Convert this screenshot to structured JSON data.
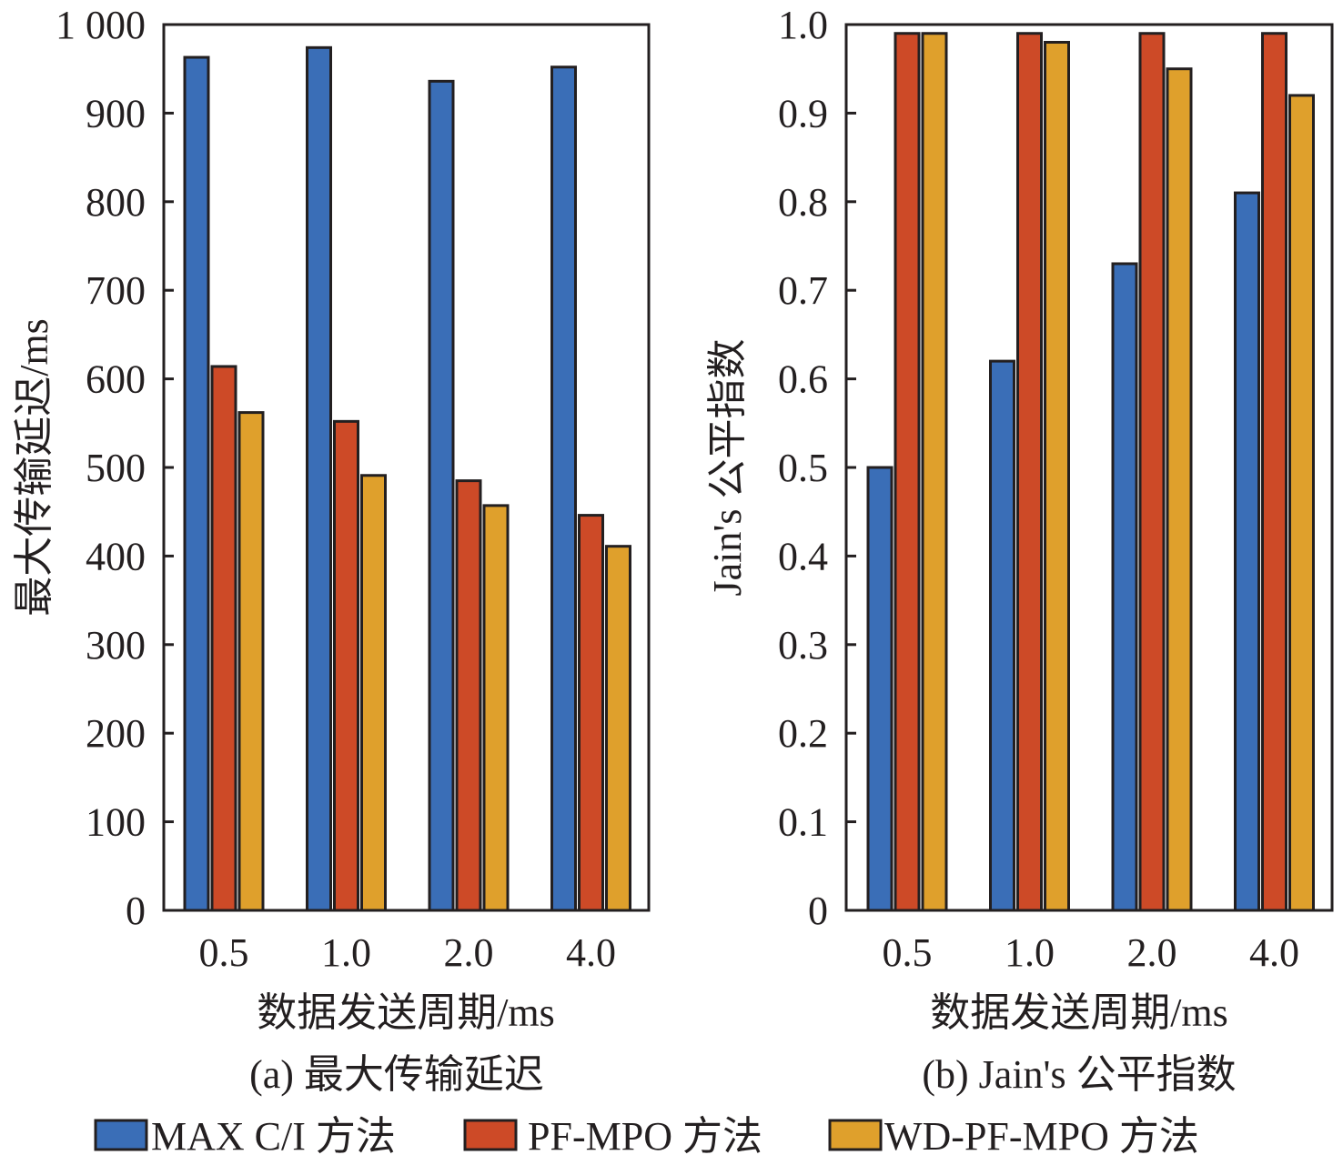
{
  "chart_data": [
    {
      "type": "bar",
      "title": "(a) 最大传输延迟",
      "xlabel": "数据发送周期/ms",
      "ylabel": "最大传输延迟/ms",
      "categories": [
        "0.5",
        "1.0",
        "2.0",
        "4.0"
      ],
      "ylim": [
        0,
        1000
      ],
      "yticks": [
        0,
        100,
        200,
        300,
        400,
        500,
        600,
        700,
        800,
        900,
        1000
      ],
      "ytick_labels": [
        "0",
        "100",
        "200",
        "300",
        "400",
        "500",
        "600",
        "700",
        "800",
        "900",
        "1 000"
      ],
      "series": [
        {
          "name": "MAX C/I 方法",
          "values": [
            963,
            974,
            936,
            952
          ]
        },
        {
          "name": "PF-MPO 方法",
          "values": [
            614,
            552,
            485,
            446
          ]
        },
        {
          "name": "WD-PF-MPO 方法",
          "values": [
            562,
            491,
            457,
            411
          ]
        }
      ],
      "grid": false
    },
    {
      "type": "bar",
      "title": "(b) Jain's 公平指数",
      "xlabel": "数据发送周期/ms",
      "ylabel": "Jain's 公平指数",
      "categories": [
        "0.5",
        "1.0",
        "2.0",
        "4.0"
      ],
      "ylim": [
        0,
        1.0
      ],
      "yticks": [
        0,
        0.1,
        0.2,
        0.3,
        0.4,
        0.5,
        0.6,
        0.7,
        0.8,
        0.9,
        1.0
      ],
      "ytick_labels": [
        "0",
        "0.1",
        "0.2",
        "0.3",
        "0.4",
        "0.5",
        "0.6",
        "0.7",
        "0.8",
        "0.9",
        "1.0"
      ],
      "series": [
        {
          "name": "MAX C/I 方法",
          "values": [
            0.5,
            0.62,
            0.73,
            0.81
          ]
        },
        {
          "name": "PF-MPO 方法",
          "values": [
            0.99,
            0.99,
            0.99,
            0.99
          ]
        },
        {
          "name": "WD-PF-MPO 方法",
          "values": [
            0.99,
            0.98,
            0.95,
            0.92
          ]
        }
      ],
      "grid": false
    }
  ],
  "legend": {
    "position": "bottom",
    "items": [
      {
        "label": "MAX C/I 方法",
        "color": "#3a6eb7"
      },
      {
        "label": "PF-MPO 方法",
        "color": "#cd4a27"
      },
      {
        "label": "WD-PF-MPO 方法",
        "color": "#dfa02c"
      }
    ]
  },
  "colors": [
    "#3a6eb7",
    "#cd4a27",
    "#dfa02c"
  ]
}
